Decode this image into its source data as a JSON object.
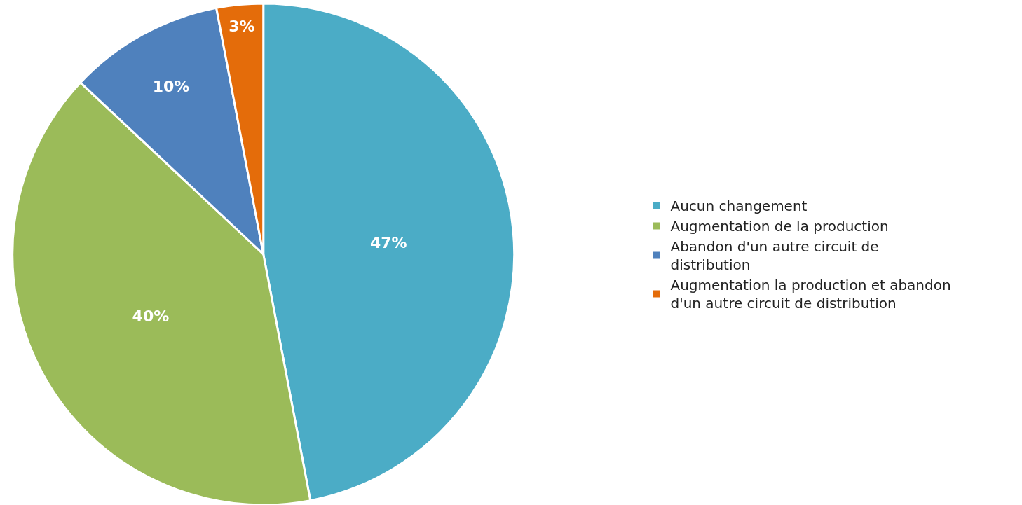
{
  "chart_data": {
    "type": "pie",
    "categories": [
      "Aucun changement",
      "Augmentation de la production",
      "Abandon d'un autre circuit de distribution",
      "Augmentation la production et abandon d'un autre circuit de distribution"
    ],
    "values": [
      47,
      40,
      10,
      3
    ],
    "value_labels": [
      "47%",
      "40%",
      "10%",
      "3%"
    ],
    "colors": [
      "#4bacc6",
      "#9bbb59",
      "#4f81bd",
      "#e46c0a"
    ],
    "legend": "right"
  }
}
